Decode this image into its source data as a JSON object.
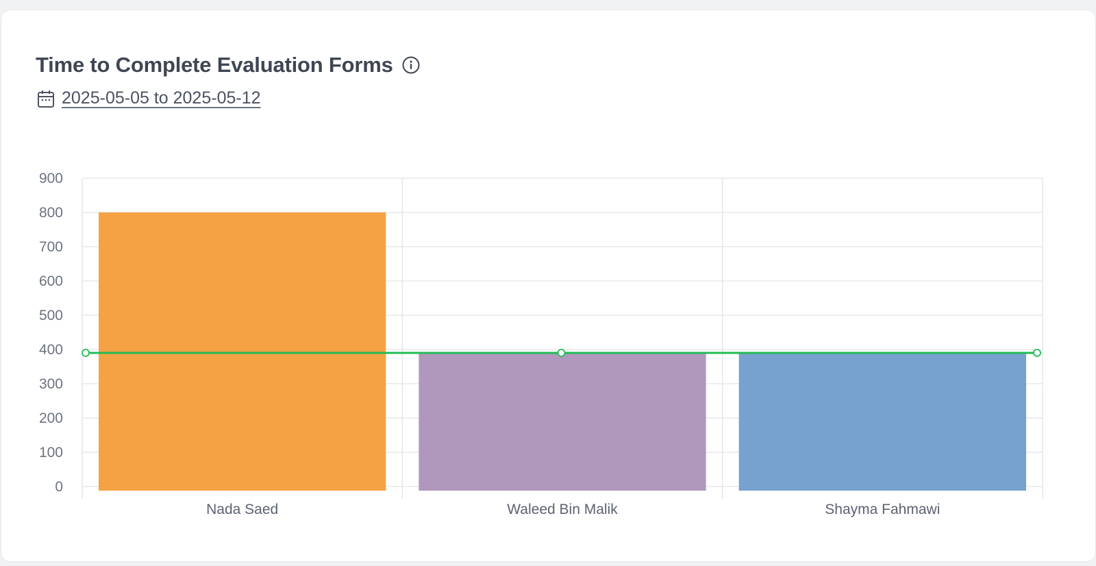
{
  "card": {
    "title": "Time to Complete Evaluation Forms",
    "info_icon": "info-circle-icon",
    "calendar_icon": "calendar-icon",
    "date_range": "2025-05-05 to 2025-05-12"
  },
  "chart_data": {
    "type": "bar",
    "categories": [
      "Nada Saed",
      "Waleed Bin Malik",
      "Shayma Fahmawi"
    ],
    "series": [
      {
        "values": [
          800,
          390,
          390
        ],
        "colors": [
          "#f5a244",
          "#b098bc",
          "#77a1cf"
        ]
      }
    ],
    "line_series": [
      {
        "values": [
          390,
          390,
          390
        ],
        "color": "#22bb55"
      }
    ],
    "title": "",
    "xlabel": "",
    "ylabel": "",
    "ylim": [
      0,
      900
    ],
    "yticks": [
      0,
      100,
      200,
      300,
      400,
      500,
      600,
      700,
      800,
      900
    ],
    "grid": true,
    "legend": "none"
  }
}
